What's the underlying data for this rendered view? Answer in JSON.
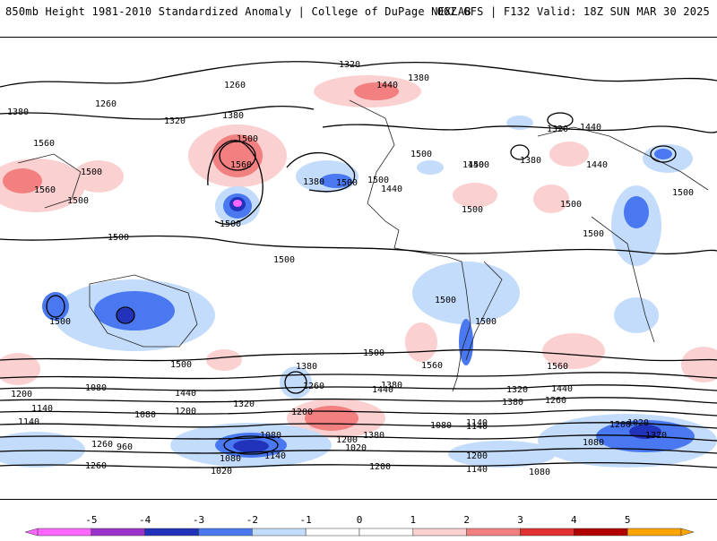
{
  "header": {
    "title_left": "850mb Height 1981-2010 Standardized Anomaly | College of DuPage NEXLAB",
    "title_right": "06Z GFS | F132 Valid: 18Z SUN MAR 30 2025"
  },
  "map": {
    "contour_labels": [
      "1320",
      "1260",
      "1380",
      "1440",
      "1380",
      "1260",
      "1380",
      "1320",
      "1500",
      "1560",
      "1560",
      "1500",
      "1500",
      "1440",
      "1500",
      "1380",
      "1440",
      "1500",
      "1500",
      "1380",
      "1320",
      "1440",
      "1560",
      "1500",
      "1440",
      "1500",
      "1500",
      "1500",
      "1500",
      "1500",
      "1500",
      "1500",
      "1500",
      "1500",
      "1500",
      "1560",
      "1560",
      "1500",
      "1500",
      "1380",
      "1260",
      "1440",
      "1380",
      "1320",
      "1440",
      "1440",
      "1380",
      "1260",
      "1200",
      "1080",
      "1140",
      "1080",
      "1200",
      "1320",
      "1200",
      "1140",
      "1080",
      "1020",
      "1140",
      "1080",
      "1020",
      "1200",
      "1380",
      "1260",
      "960",
      "1080",
      "1140",
      "1200",
      "1140",
      "1200",
      "1080",
      "1320",
      "1260",
      "1020",
      "1140",
      "1080",
      "1200"
    ],
    "colors": {
      "neg5": "#ff66ff",
      "neg4": "#9933cc",
      "neg3": "#2233bb",
      "neg2": "#4a78f0",
      "neg1": "#c4dcfb",
      "pos1": "#fad0d0",
      "pos2": "#f28080",
      "pos3": "#e03030",
      "pos4": "#b00000",
      "pos5": "#ffa500"
    }
  },
  "colorbar": {
    "ticks": [
      "-5",
      "-4",
      "-3",
      "-2",
      "-1",
      "0",
      "1",
      "2",
      "3",
      "4",
      "5"
    ],
    "colors": [
      "#ff66ff",
      "#9933cc",
      "#2233bb",
      "#4a78f0",
      "#c4dcfb",
      "#ffffff",
      "#ffffff",
      "#fad0d0",
      "#f28080",
      "#e03030",
      "#b00000",
      "#ffa500"
    ]
  }
}
